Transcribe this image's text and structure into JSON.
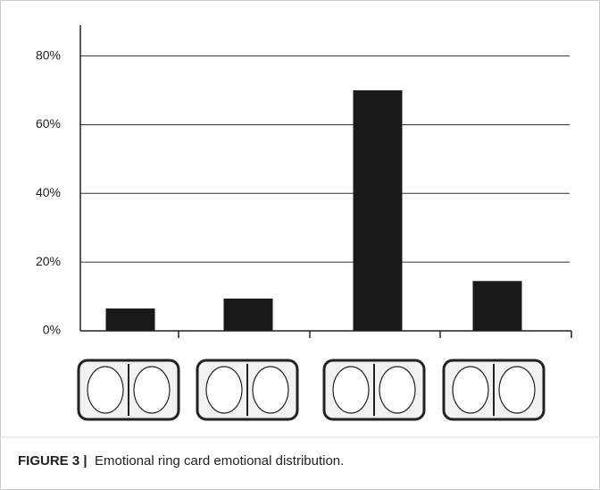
{
  "chart_data": {
    "type": "bar",
    "categories": [
      null,
      null,
      null,
      null
    ],
    "values": [
      6.5,
      9.4,
      70,
      14.5
    ],
    "color": "#1a1a1a",
    "ylim": [
      0,
      89
    ],
    "yticks": [
      {
        "value": 0,
        "label": "0%"
      },
      {
        "value": 20,
        "label": "20%"
      },
      {
        "value": 40,
        "label": "40%"
      },
      {
        "value": 60,
        "label": "60%"
      },
      {
        "value": 80,
        "label": "80%"
      }
    ],
    "grid": true
  },
  "caption": {
    "label": "FIGURE 3 |",
    "text": "Emotional ring card emotional distribution."
  }
}
